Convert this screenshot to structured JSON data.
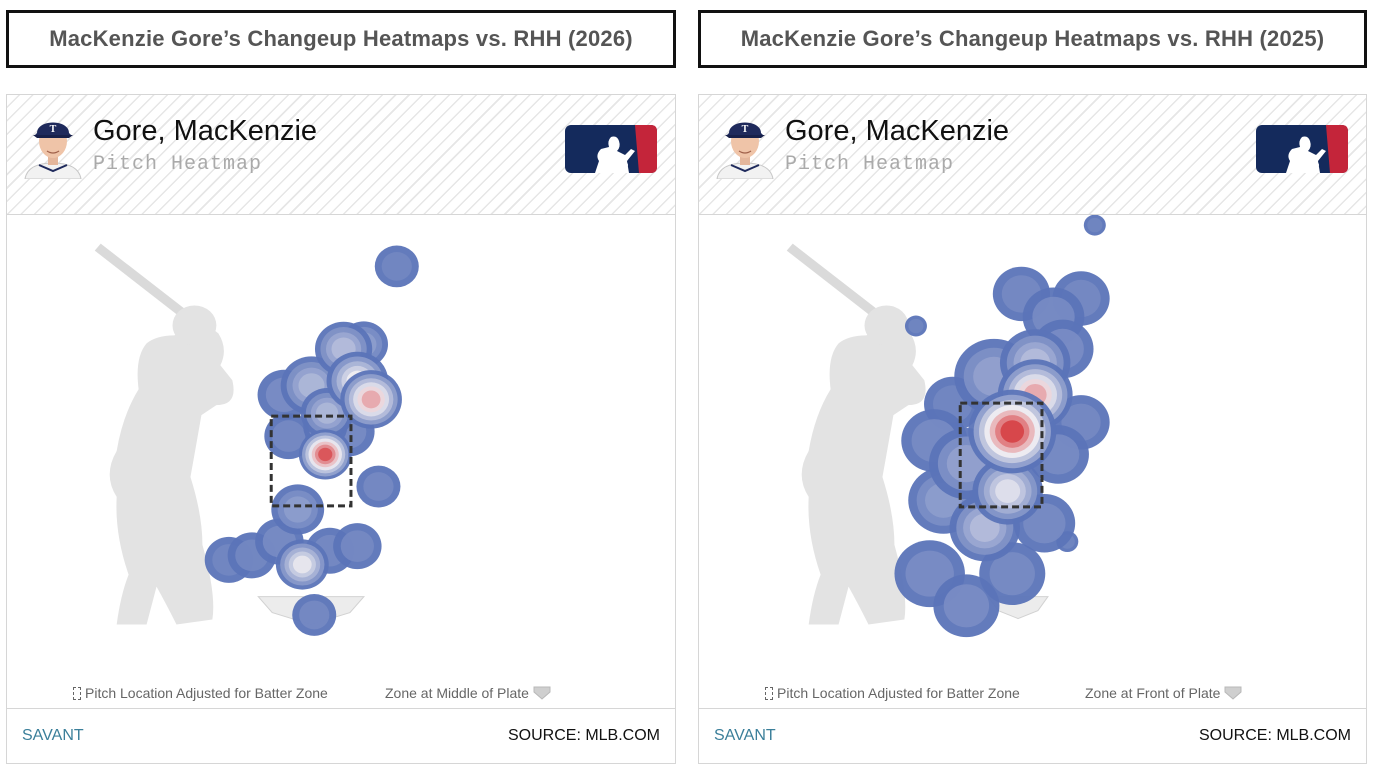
{
  "panels": [
    {
      "title": "MacKenzie Gore’s Changeup Heatmaps vs. RHH (2026)",
      "player_name": "Gore, MacKenzie",
      "subtitle": "Pitch Heatmap",
      "legend_zone": "Pitch Location Adjusted for Batter Zone",
      "legend_plate": "Zone at Middle of Plate",
      "footer_left": "SAVANT",
      "footer_right": "SOURCE: MLB.COM"
    },
    {
      "title": "MacKenzie Gore’s Changeup Heatmaps vs. RHH (2025)",
      "player_name": "Gore, MacKenzie",
      "subtitle": "Pitch Heatmap",
      "legend_zone": "Pitch Location Adjusted for Batter Zone",
      "legend_plate": "Zone at Front of Plate",
      "footer_left": "SAVANT",
      "footer_right": "SOURCE: MLB.COM"
    }
  ],
  "colors": {
    "cool": "#5b74b8",
    "mid": "#f1eef2",
    "hot": "#d32f33",
    "silhouette": "#e3e3e3",
    "title_text": "#555555",
    "savant_link": "#3b7f9a"
  },
  "chart_data": [
    {
      "type": "heatmap",
      "title": "MacKenzie Gore’s Changeup Heatmaps vs. RHH (2026)",
      "metric": "pitch location density",
      "zone_reference": "middle of plate",
      "blobs": [
        {
          "x": 0.1,
          "y": 1.8,
          "intensity": 0.95,
          "spread": 0.12
        },
        {
          "x": 0.1,
          "y": 2.1,
          "intensity": 0.45,
          "spread": 0.1
        },
        {
          "x": 0.45,
          "y": 2.6,
          "intensity": 0.75,
          "spread": 0.14
        },
        {
          "x": 0.6,
          "y": 2.4,
          "intensity": 0.85,
          "spread": 0.14
        },
        {
          "x": 0.3,
          "y": 2.95,
          "intensity": 0.55,
          "spread": 0.13
        },
        {
          "x": 0.52,
          "y": 3.0,
          "intensity": 0.4,
          "spread": 0.11
        },
        {
          "x": -0.05,
          "y": 2.55,
          "intensity": 0.5,
          "spread": 0.14
        },
        {
          "x": -0.35,
          "y": 2.45,
          "intensity": 0.35,
          "spread": 0.12
        },
        {
          "x": 0.12,
          "y": 2.25,
          "intensity": 0.5,
          "spread": 0.12
        },
        {
          "x": 0.35,
          "y": 2.05,
          "intensity": 0.3,
          "spread": 0.12
        },
        {
          "x": -0.3,
          "y": 2.0,
          "intensity": 0.25,
          "spread": 0.11
        },
        {
          "x": 0.88,
          "y": 3.85,
          "intensity": 0.2,
          "spread": 0.1
        },
        {
          "x": 0.68,
          "y": 1.45,
          "intensity": 0.25,
          "spread": 0.1
        },
        {
          "x": -0.2,
          "y": 1.2,
          "intensity": 0.4,
          "spread": 0.12
        },
        {
          "x": -0.4,
          "y": 0.85,
          "intensity": 0.3,
          "spread": 0.11
        },
        {
          "x": -0.7,
          "y": 0.7,
          "intensity": 0.22,
          "spread": 0.11
        },
        {
          "x": -0.95,
          "y": 0.65,
          "intensity": 0.2,
          "spread": 0.11
        },
        {
          "x": -0.15,
          "y": 0.6,
          "intensity": 0.7,
          "spread": 0.12
        },
        {
          "x": 0.15,
          "y": 0.75,
          "intensity": 0.25,
          "spread": 0.11
        },
        {
          "x": 0.45,
          "y": 0.8,
          "intensity": 0.25,
          "spread": 0.11
        },
        {
          "x": -0.02,
          "y": 0.05,
          "intensity": 0.25,
          "spread": 0.1
        }
      ]
    },
    {
      "type": "heatmap",
      "title": "MacKenzie Gore’s Changeup Heatmaps vs. RHH (2025)",
      "metric": "pitch location density",
      "zone_reference": "front of plate",
      "blobs": [
        {
          "x": 0.1,
          "y": 2.05,
          "intensity": 1.0,
          "spread": 0.2
        },
        {
          "x": 0.35,
          "y": 2.45,
          "intensity": 0.85,
          "spread": 0.17
        },
        {
          "x": 0.35,
          "y": 2.8,
          "intensity": 0.55,
          "spread": 0.16
        },
        {
          "x": -0.1,
          "y": 2.65,
          "intensity": 0.45,
          "spread": 0.18
        },
        {
          "x": 0.05,
          "y": 1.4,
          "intensity": 0.65,
          "spread": 0.16
        },
        {
          "x": -0.2,
          "y": 1.0,
          "intensity": 0.55,
          "spread": 0.16
        },
        {
          "x": -0.4,
          "y": 1.7,
          "intensity": 0.45,
          "spread": 0.17
        },
        {
          "x": -0.75,
          "y": 1.95,
          "intensity": 0.3,
          "spread": 0.15
        },
        {
          "x": -0.65,
          "y": 1.3,
          "intensity": 0.4,
          "spread": 0.16
        },
        {
          "x": -0.8,
          "y": 0.5,
          "intensity": 0.35,
          "spread": 0.16
        },
        {
          "x": -0.4,
          "y": 0.15,
          "intensity": 0.35,
          "spread": 0.15
        },
        {
          "x": 0.1,
          "y": 0.5,
          "intensity": 0.3,
          "spread": 0.15
        },
        {
          "x": 0.45,
          "y": 1.05,
          "intensity": 0.3,
          "spread": 0.14
        },
        {
          "x": 0.55,
          "y": 3.3,
          "intensity": 0.3,
          "spread": 0.14
        },
        {
          "x": 0.85,
          "y": 3.5,
          "intensity": 0.25,
          "spread": 0.13
        },
        {
          "x": 0.85,
          "y": 2.15,
          "intensity": 0.25,
          "spread": 0.13
        },
        {
          "x": 0.2,
          "y": 3.55,
          "intensity": 0.25,
          "spread": 0.13
        },
        {
          "x": 0.65,
          "y": 2.95,
          "intensity": 0.35,
          "spread": 0.14
        },
        {
          "x": -0.55,
          "y": 2.35,
          "intensity": 0.2,
          "spread": 0.13
        },
        {
          "x": 0.6,
          "y": 1.8,
          "intensity": 0.3,
          "spread": 0.14
        },
        {
          "x": 1.0,
          "y": 4.3,
          "intensity": 0.15,
          "spread": 0.05
        },
        {
          "x": 0.4,
          "y": 4.55,
          "intensity": 0.15,
          "spread": 0.05
        },
        {
          "x": 0.7,
          "y": 0.85,
          "intensity": 0.15,
          "spread": 0.05
        },
        {
          "x": -0.95,
          "y": 3.2,
          "intensity": 0.15,
          "spread": 0.05
        }
      ]
    }
  ]
}
